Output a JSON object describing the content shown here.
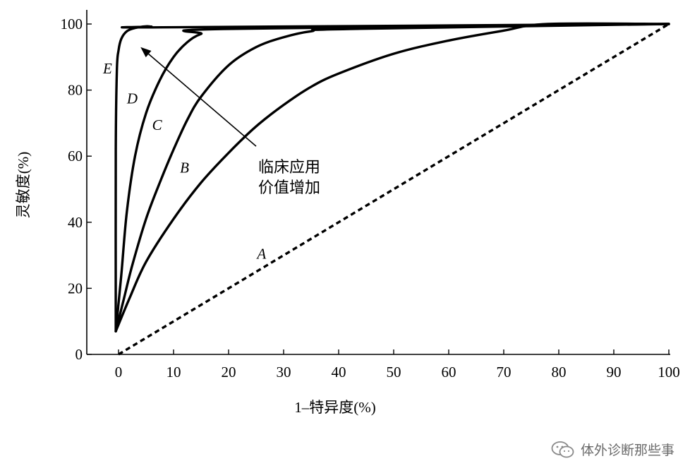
{
  "chart_data": {
    "type": "line",
    "title": "",
    "xlabel": "1–特异度(%)",
    "ylabel": "灵敏度(%)",
    "xlim": [
      -6,
      100
    ],
    "ylim": [
      0,
      100
    ],
    "x_ticks": [
      0,
      10,
      20,
      30,
      40,
      50,
      60,
      70,
      80,
      90,
      100
    ],
    "y_ticks": [
      0,
      20,
      40,
      60,
      80,
      100
    ],
    "grid": false,
    "legend": "none",
    "series": [
      {
        "name": "A",
        "style": "dashed",
        "points": [
          [
            0,
            0
          ],
          [
            100,
            100
          ]
        ]
      },
      {
        "name": "B",
        "style": "solid",
        "points": [
          [
            -0.5,
            7
          ],
          [
            2,
            17
          ],
          [
            5,
            28
          ],
          [
            10,
            41
          ],
          [
            15,
            52
          ],
          [
            20,
            61
          ],
          [
            25,
            69
          ],
          [
            30,
            75.5
          ],
          [
            35,
            81
          ],
          [
            40,
            85
          ],
          [
            50,
            91
          ],
          [
            60,
            95
          ],
          [
            70,
            98
          ],
          [
            78,
            100
          ],
          [
            100,
            100
          ]
        ]
      },
      {
        "name": "C",
        "style": "solid",
        "points": [
          [
            -0.5,
            7
          ],
          [
            1,
            17
          ],
          [
            2.5,
            27
          ],
          [
            5,
            41
          ],
          [
            7.5,
            52
          ],
          [
            10,
            62
          ],
          [
            12.5,
            71
          ],
          [
            15,
            78
          ],
          [
            20,
            87.5
          ],
          [
            25,
            93
          ],
          [
            30,
            96
          ],
          [
            35,
            97.8
          ],
          [
            42,
            98.5
          ],
          [
            100,
            100
          ]
        ]
      },
      {
        "name": "D",
        "style": "solid",
        "points": [
          [
            -0.5,
            7
          ],
          [
            0.5,
            24
          ],
          [
            1.5,
            43
          ],
          [
            3,
            60
          ],
          [
            5,
            73
          ],
          [
            7.5,
            83
          ],
          [
            10,
            90
          ],
          [
            12.5,
            94.5
          ],
          [
            15,
            97
          ],
          [
            19,
            98.5
          ],
          [
            100,
            100
          ]
        ]
      },
      {
        "name": "E",
        "style": "solid",
        "points": [
          [
            -0.5,
            7
          ],
          [
            -0.5,
            62
          ],
          [
            -0.3,
            86
          ],
          [
            0,
            92
          ],
          [
            0.5,
            95.5
          ],
          [
            1.5,
            97.8
          ],
          [
            3,
            98.8
          ],
          [
            5,
            99.3
          ],
          [
            6,
            99.2
          ],
          [
            8,
            99
          ],
          [
            100,
            100
          ]
        ]
      }
    ],
    "curve_labels": [
      {
        "text": "A",
        "x": 26,
        "y": 29
      },
      {
        "text": "B",
        "x": 12,
        "y": 55
      },
      {
        "text": "C",
        "x": 7,
        "y": 68
      },
      {
        "text": "D",
        "x": 2.5,
        "y": 76
      },
      {
        "text": "E",
        "x": -2,
        "y": 85
      }
    ],
    "annotation": {
      "lines": [
        "临床应用",
        "价值增加"
      ],
      "arrow_from": [
        25,
        63
      ],
      "arrow_to": [
        4,
        93
      ]
    }
  },
  "watermark": {
    "text": "体外诊断那些事",
    "icon": "wechat-icon"
  }
}
